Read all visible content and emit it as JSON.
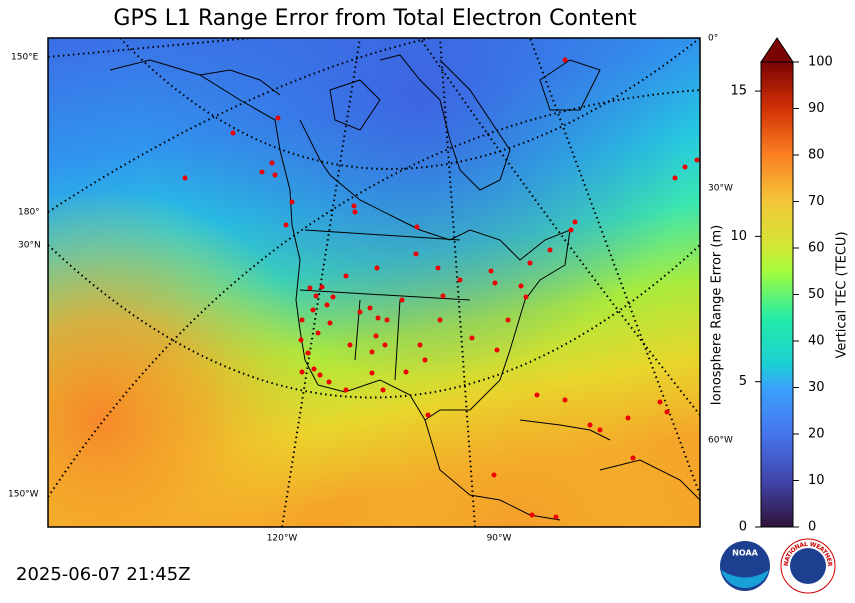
{
  "title": "GPS L1 Range Error from Total Electron Content",
  "timestamp": "2025-06-07 21:45Z",
  "graticule_labels": [
    "150°E",
    "180°",
    "30°N",
    "150°W",
    "120°W",
    "90°W",
    "0°",
    "30°W",
    "60°W"
  ],
  "range_axis": {
    "label": "Ionosphere Range Error (m)",
    "lim": [
      0,
      16
    ],
    "ticks": [
      0,
      5,
      10,
      15
    ]
  },
  "colorbar": {
    "label": "Vertical TEC (TECU)",
    "lim": [
      0,
      100
    ],
    "ticks": [
      0,
      10,
      20,
      30,
      40,
      50,
      60,
      70,
      80,
      90,
      100
    ]
  },
  "logos": {
    "noaa": "NOAA",
    "nws": "NATIONAL WEATHER SERVICE"
  }
}
